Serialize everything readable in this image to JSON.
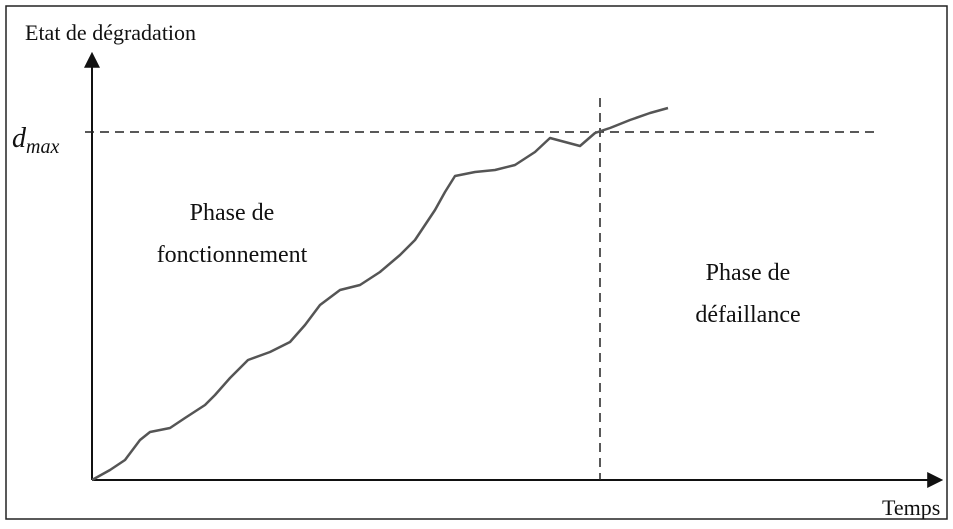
{
  "y_axis_label": "Etat de dégradation",
  "x_axis_label": "Temps",
  "threshold_label": {
    "base": "d",
    "sub": "max"
  },
  "phases": [
    {
      "lines": [
        "Phase de",
        "fonctionnement"
      ]
    },
    {
      "lines": [
        "Phase de",
        "défaillance"
      ]
    }
  ]
}
